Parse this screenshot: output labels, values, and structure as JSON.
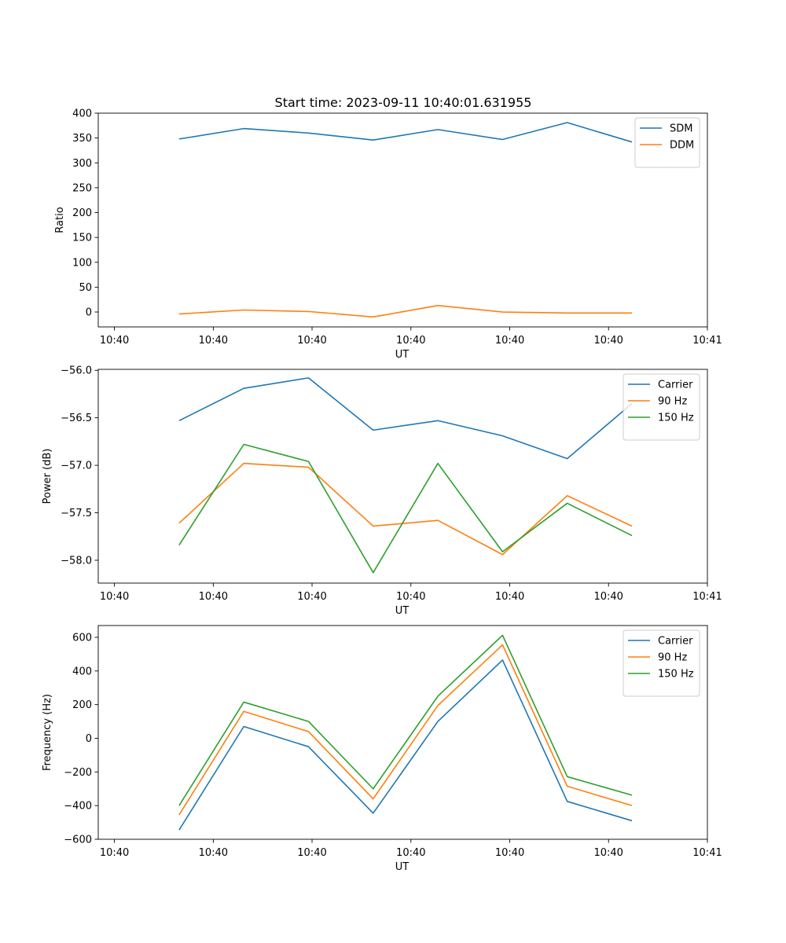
{
  "title": "Start time: 2023-09-11 10:40:01.631955",
  "chart_data": [
    {
      "type": "line",
      "title": "Start time: 2023-09-11 10:40:01.631955",
      "xlabel": "UT",
      "ylabel": "Ratio",
      "x": [
        0.6,
        1.2,
        1.8,
        2.4,
        3.0,
        3.6,
        4.2,
        4.8
      ],
      "xlim": [
        -0.15,
        5.5
      ],
      "xticks": [
        0,
        0.917,
        1.833,
        2.75,
        3.667,
        4.583,
        5.5
      ],
      "xtick_labels": [
        "10:40",
        "10:40",
        "10:40",
        "10:40",
        "10:40",
        "10:40",
        "10:41"
      ],
      "ylim": [
        -30,
        400
      ],
      "yticks": [
        0,
        50,
        100,
        150,
        200,
        250,
        300,
        350,
        400
      ],
      "ytick_labels": [
        "0",
        "50",
        "100",
        "150",
        "200",
        "250",
        "300",
        "350",
        "400"
      ],
      "legend": "top-right",
      "series": [
        {
          "name": "SDM",
          "color": "#1f77b4",
          "values": [
            348,
            369,
            360,
            346,
            367,
            347,
            381,
            342
          ]
        },
        {
          "name": "DDM",
          "color": "#ff7f0e",
          "values": [
            -4,
            4,
            1,
            -10,
            13,
            0,
            -2,
            -2
          ]
        }
      ]
    },
    {
      "type": "line",
      "xlabel": "UT",
      "ylabel": "Power (dB)",
      "x": [
        0.6,
        1.2,
        1.8,
        2.4,
        3.0,
        3.6,
        4.2,
        4.8
      ],
      "xlim": [
        -0.15,
        5.5
      ],
      "xticks": [
        0,
        0.917,
        1.833,
        2.75,
        3.667,
        4.583,
        5.5
      ],
      "xtick_labels": [
        "10:40",
        "10:40",
        "10:40",
        "10:40",
        "10:40",
        "10:40",
        "10:41"
      ],
      "ylim": [
        -58.24,
        -55.99
      ],
      "yticks": [
        -58.0,
        -57.5,
        -57.0,
        -56.5,
        -56.0
      ],
      "ytick_labels": [
        "−58.0",
        "−57.5",
        "−57.0",
        "−56.5",
        "−56.0"
      ],
      "legend": "top-right",
      "series": [
        {
          "name": "Carrier",
          "color": "#1f77b4",
          "values": [
            -56.53,
            -56.19,
            -56.08,
            -56.63,
            -56.53,
            -56.69,
            -56.93,
            -56.35
          ]
        },
        {
          "name": "90 Hz",
          "color": "#ff7f0e",
          "values": [
            -57.61,
            -56.98,
            -57.02,
            -57.64,
            -57.58,
            -57.94,
            -57.32,
            -57.64
          ]
        },
        {
          "name": "150 Hz",
          "color": "#2ca02c",
          "values": [
            -57.84,
            -56.78,
            -56.96,
            -58.13,
            -56.98,
            -57.91,
            -57.4,
            -57.74
          ]
        }
      ]
    },
    {
      "type": "line",
      "xlabel": "UT",
      "ylabel": "Frequency (Hz)",
      "x": [
        0.6,
        1.2,
        1.8,
        2.4,
        3.0,
        3.6,
        4.2,
        4.8
      ],
      "xlim": [
        -0.15,
        5.5
      ],
      "xticks": [
        0,
        0.917,
        1.833,
        2.75,
        3.667,
        4.583,
        5.5
      ],
      "xtick_labels": [
        "10:40",
        "10:40",
        "10:40",
        "10:40",
        "10:40",
        "10:40",
        "10:41"
      ],
      "ylim": [
        -600,
        670
      ],
      "yticks": [
        -600,
        -400,
        -200,
        0,
        200,
        400,
        600
      ],
      "ytick_labels": [
        "−600",
        "−400",
        "−200",
        "0",
        "200",
        "400",
        "600"
      ],
      "legend": "top-right",
      "series": [
        {
          "name": "Carrier",
          "color": "#1f77b4",
          "values": [
            -545,
            70,
            -50,
            -445,
            100,
            465,
            -375,
            -490
          ]
        },
        {
          "name": "90 Hz",
          "color": "#ff7f0e",
          "values": [
            -455,
            160,
            40,
            -360,
            195,
            555,
            -285,
            -400
          ]
        },
        {
          "name": "150 Hz",
          "color": "#2ca02c",
          "values": [
            -400,
            215,
            100,
            -300,
            250,
            612,
            -228,
            -338
          ]
        }
      ]
    }
  ]
}
